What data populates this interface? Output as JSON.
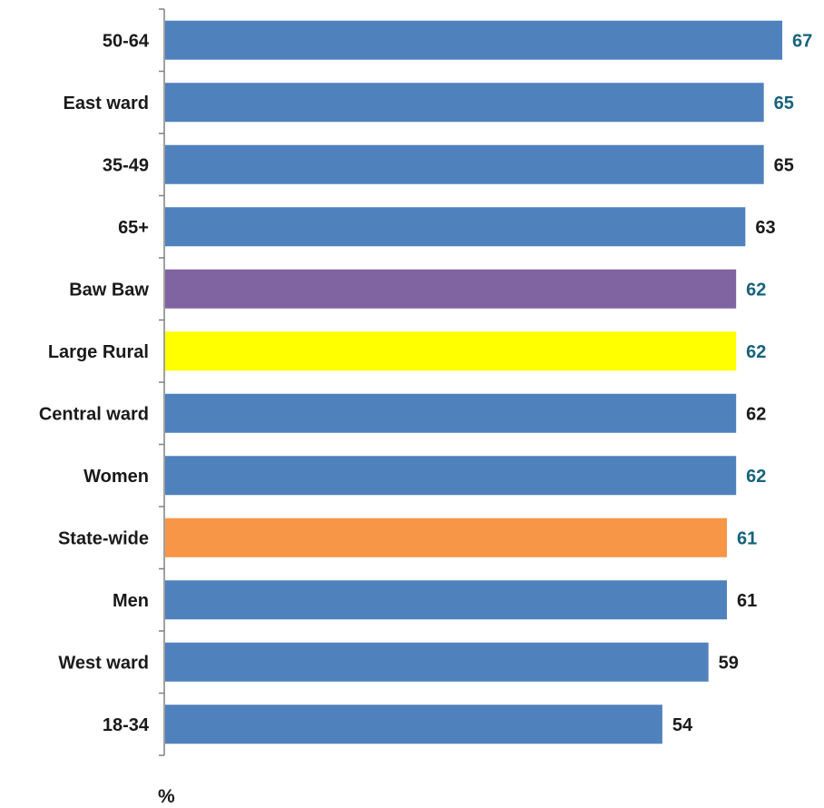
{
  "chart_data": {
    "type": "bar",
    "orientation": "horizontal",
    "categories": [
      "50-64",
      "East ward",
      "35-49",
      "65+",
      "Baw Baw",
      "Large Rural",
      "Central ward",
      "Women",
      "State-wide",
      "Men",
      "West ward",
      "18-34"
    ],
    "values": [
      67,
      65,
      65,
      63,
      62,
      62,
      62,
      62,
      61,
      61,
      59,
      54
    ],
    "bar_colors": [
      "#4f81bd",
      "#4f81bd",
      "#4f81bd",
      "#4f81bd",
      "#8064a2",
      "#ffff00",
      "#4f81bd",
      "#4f81bd",
      "#f79646",
      "#4f81bd",
      "#4f81bd",
      "#4f81bd"
    ],
    "label_colors": [
      "#17637a",
      "#17637a",
      "#1a1a1a",
      "#1a1a1a",
      "#17637a",
      "#17637a",
      "#1a1a1a",
      "#17637a",
      "#17637a",
      "#1a1a1a",
      "#1a1a1a",
      "#1a1a1a"
    ],
    "xlabel": "%",
    "xlim": [
      0,
      67
    ],
    "grid": false,
    "legend": "none"
  }
}
